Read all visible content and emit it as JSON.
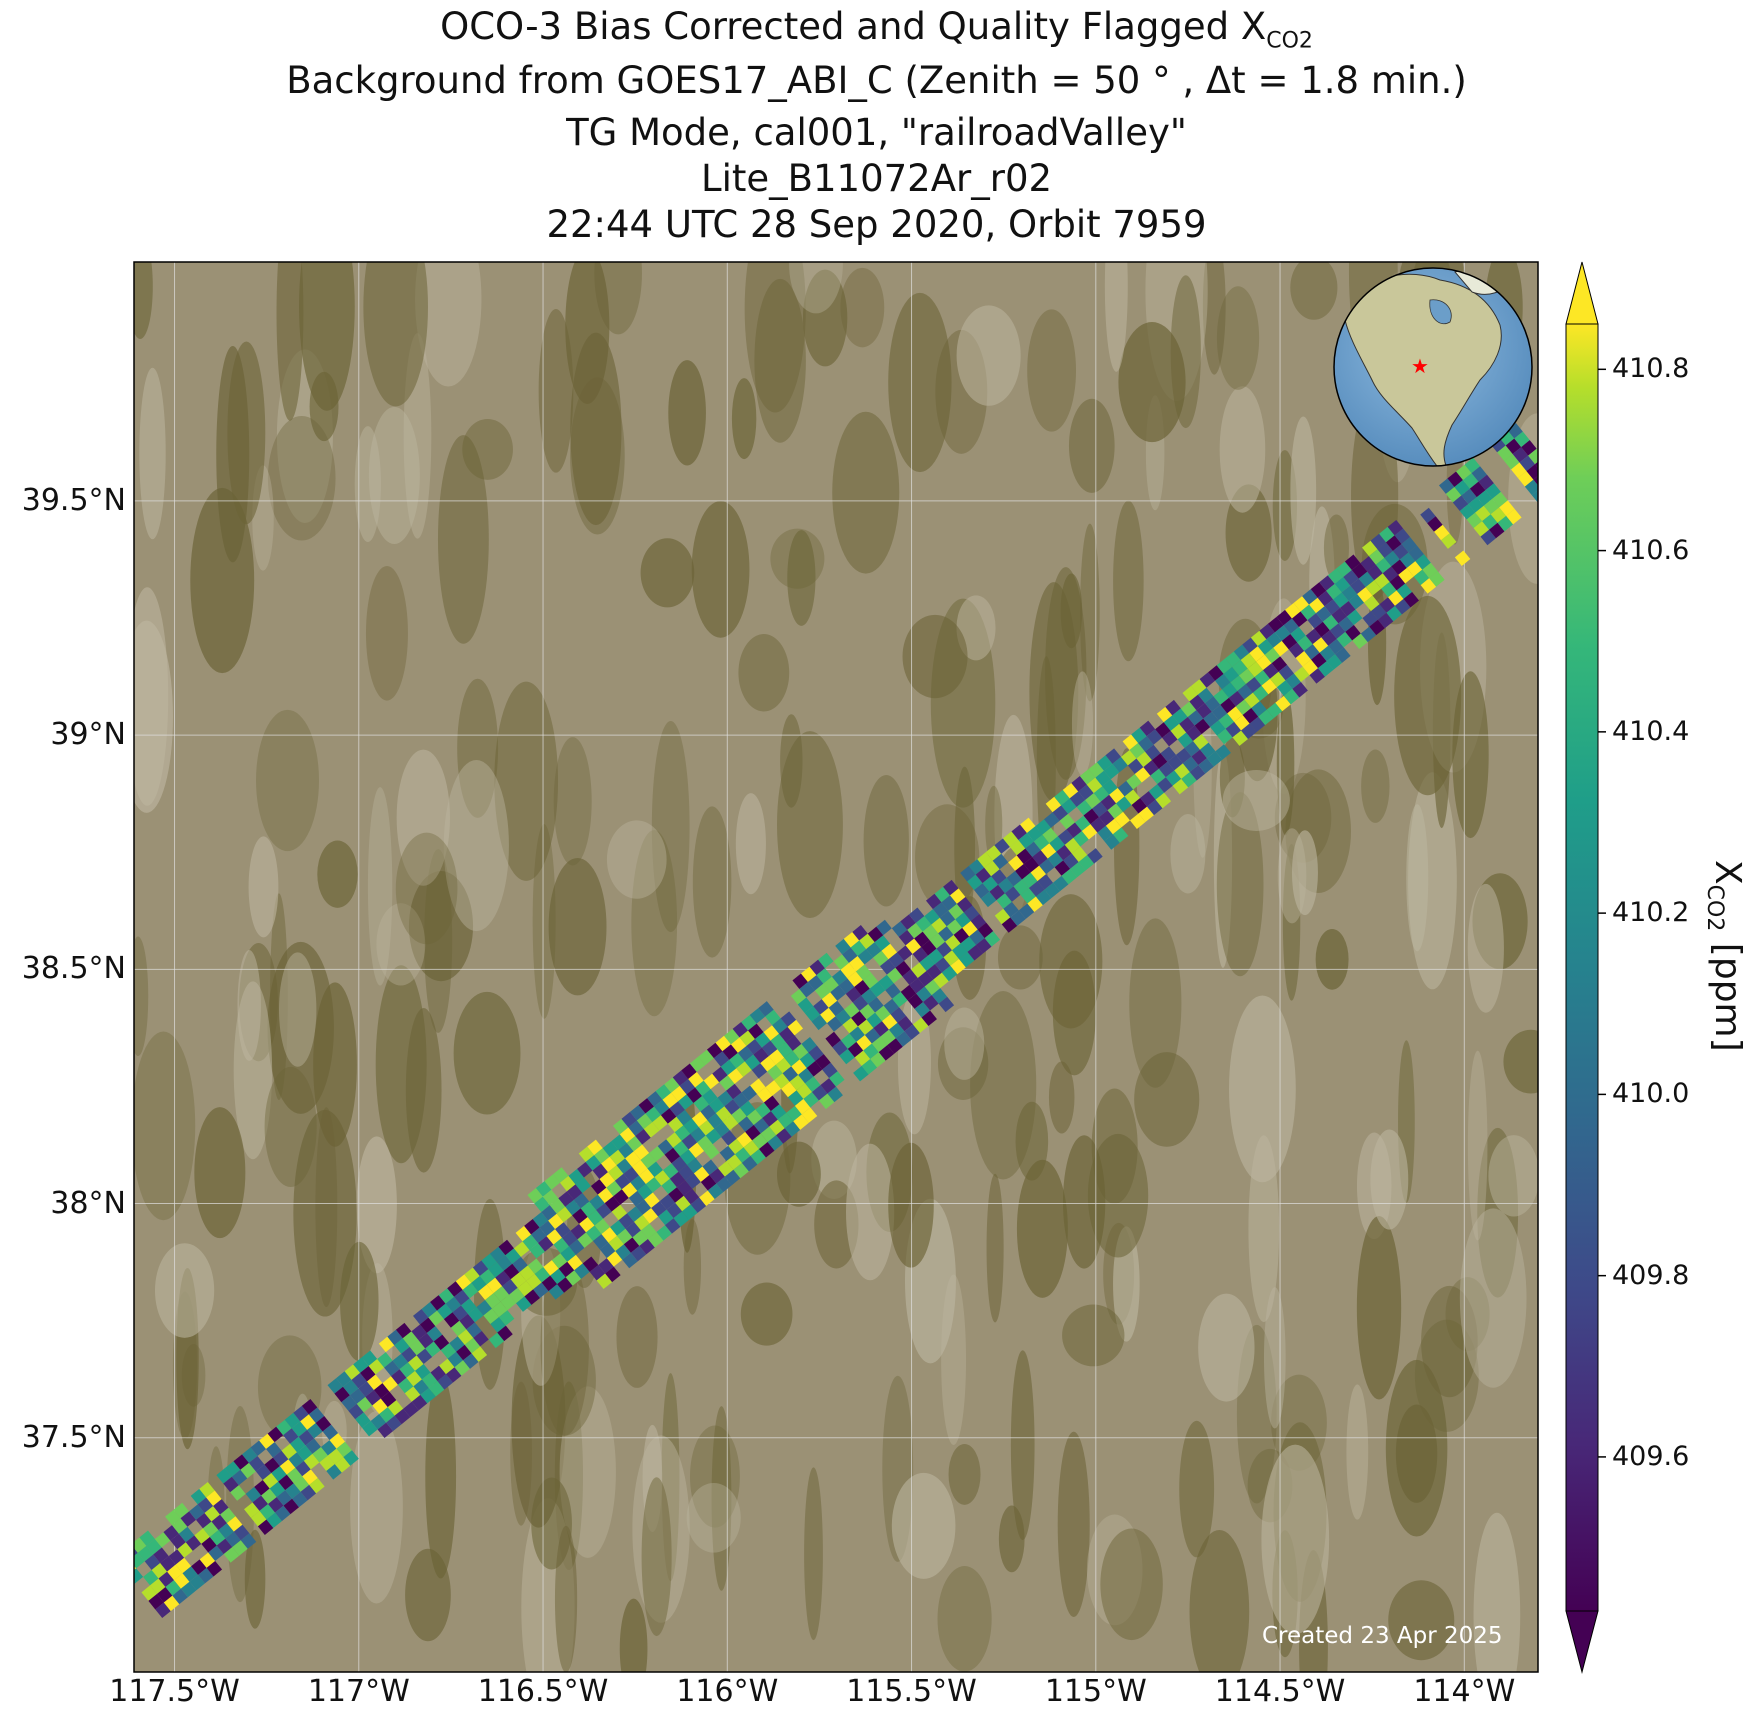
{
  "title": {
    "line1_prefix": "OCO-3 Bias Corrected and Quality Flagged X",
    "line1_sub": "CO2",
    "line2": "Background from GOES17_ABI_C (Zenith = 50 ° , Δt =  1.8 min.)",
    "line3": "TG Mode, cal001, \"railroadValley\"",
    "line4": "Lite_B11072Ar_r02",
    "line5": "22:44 UTC 28 Sep 2020, Orbit 7959"
  },
  "map": {
    "lon_ticks": [
      "117.5°W",
      "117°W",
      "116.5°W",
      "116°W",
      "115.5°W",
      "115°W",
      "114.5°W",
      "114°W"
    ],
    "lat_ticks": [
      "39.5°N",
      "39°N",
      "38.5°N",
      "38°N",
      "37.5°N"
    ],
    "lon_tick_values": [
      -117.5,
      -117.0,
      -116.5,
      -116.0,
      -115.5,
      -115.0,
      -114.5,
      -114.0
    ],
    "lat_tick_values": [
      39.5,
      39.0,
      38.5,
      38.0,
      37.5
    ],
    "lon_range": [
      -117.61,
      -113.8
    ],
    "lat_range": [
      37.0,
      40.01
    ],
    "background": "satellite imagery (GOES17 ABI)",
    "gridlines": true,
    "inset": "globe with red star marking the site in the western United States",
    "colors": {
      "terrain_light": "#9e9478",
      "terrain_dark": "#6b6336",
      "star": "#ff0000",
      "ocean": "#6b9ec9"
    }
  },
  "colorbar": {
    "label_prefix": "X",
    "label_sub": "CO2",
    "label_suffix": " [ppm]",
    "colormap": "viridis",
    "range": [
      409.43,
      410.85
    ],
    "ticks": [
      "410.8",
      "410.6",
      "410.4",
      "410.2",
      "410.0",
      "409.8",
      "409.6"
    ],
    "tick_values": [
      410.8,
      410.6,
      410.4,
      410.2,
      410.0,
      409.8,
      409.6
    ],
    "extend": "both"
  },
  "swath": {
    "start": {
      "lon": -117.6,
      "lat": 37.18
    },
    "end": {
      "lon": -113.8,
      "lat": 39.6
    },
    "description": "diagonal swath of XCO2 soundings from SW to NE"
  },
  "footer": {
    "created": "Created 23 Apr 2025"
  }
}
